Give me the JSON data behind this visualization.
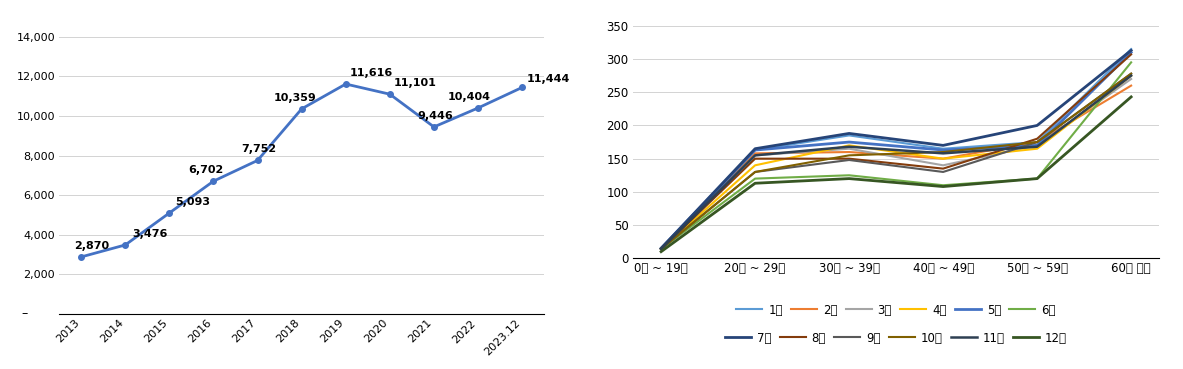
{
  "left_years": [
    "2013",
    "2014",
    "2015",
    "2016",
    "2017",
    "2018",
    "2019",
    "2020",
    "2021",
    "2022",
    "2023.12"
  ],
  "left_values": [
    2870,
    3476,
    5093,
    6702,
    7752,
    10359,
    11616,
    11101,
    9446,
    10404,
    11444
  ],
  "left_labels": [
    "2,870",
    "3,476",
    "5,093",
    "6,702",
    "7,752",
    "10,359",
    "11,616",
    "11,101",
    "9,446",
    "10,404",
    "11,444"
  ],
  "left_line_color": "#4472C4",
  "left_ylim": [
    0,
    14000
  ],
  "left_yticks": [
    0,
    2000,
    4000,
    6000,
    8000,
    10000,
    12000,
    14000
  ],
  "left_ytick_labels": [
    "-",
    "2,000",
    "4,000",
    "6,000",
    "8,000",
    "10,000",
    "12,000",
    "14,000"
  ],
  "age_groups": [
    "0세 ~ 19세",
    "20세 ~ 29세",
    "30세 ~ 39세",
    "40세 ~ 49세",
    "50세 ~ 59세",
    "60세 이상"
  ],
  "right_ylim": [
    0,
    350
  ],
  "right_yticks": [
    0,
    50,
    100,
    150,
    200,
    250,
    300,
    350
  ],
  "monthly_data": {
    "1월": [
      15,
      163,
      185,
      165,
      175,
      315
    ],
    "2월": [
      15,
      158,
      160,
      150,
      175,
      260
    ],
    "3월": [
      15,
      155,
      165,
      140,
      170,
      270
    ],
    "4월": [
      14,
      140,
      170,
      150,
      165,
      275
    ],
    "5월": [
      15,
      163,
      175,
      163,
      170,
      310
    ],
    "6월": [
      14,
      120,
      125,
      110,
      120,
      295
    ],
    "7월": [
      15,
      165,
      188,
      170,
      200,
      313
    ],
    "8월": [
      14,
      150,
      150,
      135,
      180,
      307
    ],
    "9월": [
      14,
      130,
      148,
      130,
      175,
      278
    ],
    "10월": [
      14,
      130,
      155,
      160,
      175,
      278
    ],
    "11월": [
      14,
      155,
      168,
      158,
      168,
      275
    ],
    "12월": [
      10,
      113,
      120,
      108,
      120,
      243
    ]
  },
  "month_colors": {
    "1월": "#5B9BD5",
    "2월": "#ED7D31",
    "3월": "#A5A5A5",
    "4월": "#FFC000",
    "5월": "#4472C4",
    "6월": "#70AD47",
    "7월": "#264478",
    "8월": "#843C0C",
    "9월": "#595959",
    "10월": "#806000",
    "11월": "#2E4053",
    "12월": "#375623"
  },
  "legend_months_row1": [
    "1월",
    "2월",
    "3월",
    "4월",
    "5월",
    "6월"
  ],
  "legend_months_row2": [
    "7월",
    "8월",
    "9월",
    "10월",
    "11월",
    "12월"
  ]
}
